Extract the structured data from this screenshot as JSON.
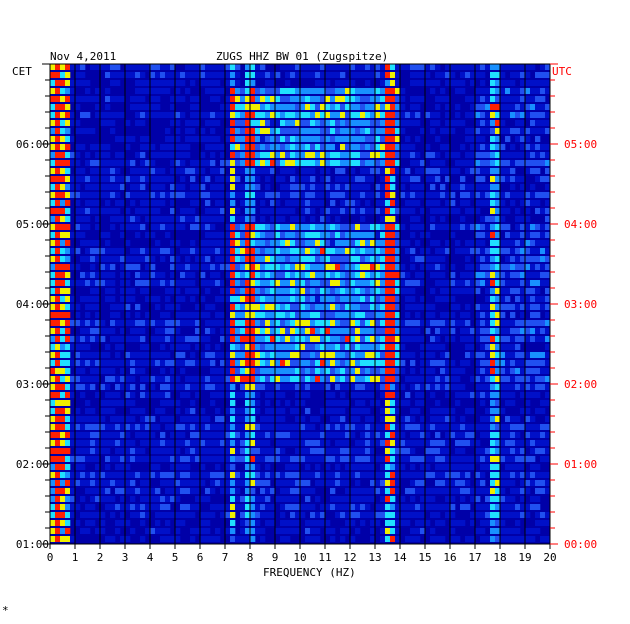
{
  "chart_data": {
    "type": "heatmap",
    "title": {
      "date": "Nov 4,2011",
      "station": "ZUGS HHZ BW 01 (Zugspitze)"
    },
    "xlabel": "FREQUENCY (HZ)",
    "xlim": [
      0,
      20
    ],
    "x_ticks": [
      "0",
      "1",
      "2",
      "3",
      "4",
      "5",
      "6",
      "7",
      "8",
      "9",
      "10",
      "11",
      "12",
      "13",
      "14",
      "15",
      "16",
      "17",
      "18",
      "19",
      "20"
    ],
    "left_axis": {
      "label": "CET",
      "ticks": [
        "06:00",
        "05:00",
        "04:00",
        "03:00",
        "02:00",
        "01:00"
      ],
      "tick_hours_from_top": [
        1,
        2,
        3,
        4,
        5,
        6
      ]
    },
    "right_axis": {
      "label": "UTC",
      "ticks": [
        "05:00",
        "04:00",
        "03:00",
        "02:00",
        "01:00",
        "00:00"
      ],
      "tick_hours_from_top": [
        1,
        2,
        3,
        4,
        5,
        6
      ]
    },
    "time_span_hours": 6,
    "rows": 60,
    "prominent_lines_hz": [
      0.3,
      7.3,
      8.0,
      13.6,
      17.8
    ],
    "elevated_band_hz": [
      7.2,
      14.0
    ],
    "active_periods_cet": [
      "03:00-05:00",
      "05:40-06:40"
    ]
  },
  "colors": {
    "background": "#0000a8",
    "low": "#0010c8",
    "mid": "#2050f0",
    "high": "#20e0ff",
    "peak": "#ff2000",
    "grid": "#000000",
    "utc_text": "#ff0000"
  },
  "footer_mark": "*"
}
